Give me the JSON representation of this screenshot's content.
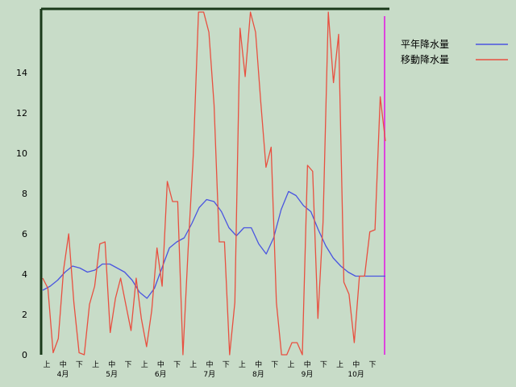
{
  "chart_data": {
    "type": "line",
    "ylim": [
      0,
      17
    ],
    "yticks": [
      0,
      2,
      4,
      6,
      8,
      10,
      12,
      14
    ],
    "x_sub_labels": [
      "上",
      "中",
      "下",
      "上",
      "中",
      "下",
      "上",
      "中",
      "下",
      "上",
      "中",
      "下",
      "上",
      "中",
      "下",
      "上",
      "中",
      "下",
      "上",
      "中",
      "下"
    ],
    "month_labels": [
      "4月",
      "5月",
      "6月",
      "7月",
      "8月",
      "9月",
      "10月"
    ],
    "legend_position": "top-right",
    "series": [
      {
        "name": "平年降水量",
        "color": "#4a55e0",
        "values": [
          3.2,
          3.4,
          3.7,
          4.1,
          4.4,
          4.3,
          4.1,
          4.2,
          4.5,
          4.5,
          4.3,
          4.1,
          3.7,
          3.1,
          2.8,
          3.3,
          4.3,
          5.3,
          5.6,
          5.8,
          6.5,
          7.3,
          7.7,
          7.6,
          7.1,
          6.3,
          5.9,
          6.3,
          6.3,
          5.5,
          5.0,
          5.8,
          7.2,
          8.1,
          7.9,
          7.4,
          7.1,
          6.2,
          5.4,
          4.8,
          4.4,
          4.1,
          3.9,
          3.9,
          3.9,
          3.9,
          3.9
        ]
      },
      {
        "name": "移動降水量",
        "color": "#e85040",
        "values": [
          3.8,
          3.3,
          0.1,
          0.8,
          4.2,
          6.0,
          2.6,
          0.1,
          0.0,
          2.5,
          3.4,
          5.5,
          5.6,
          1.1,
          2.8,
          3.8,
          2.5,
          1.2,
          3.8,
          1.8,
          0.4,
          2.2,
          5.3,
          3.4,
          8.6,
          7.6,
          7.6,
          0.0,
          5.2,
          9.9,
          17.0,
          17.0,
          16.0,
          12.4,
          5.6,
          5.6,
          0.0,
          2.6,
          16.2,
          13.8,
          17.0,
          16.0,
          12.5,
          9.3,
          10.3,
          2.6,
          0.0,
          0.0,
          0.6,
          0.6,
          0.0,
          9.4,
          9.1,
          1.8,
          6.6,
          17.0,
          13.5,
          15.9,
          3.6,
          3.0,
          0.6,
          3.9,
          3.9,
          6.1,
          6.2,
          12.8,
          10.6
        ]
      }
    ]
  }
}
